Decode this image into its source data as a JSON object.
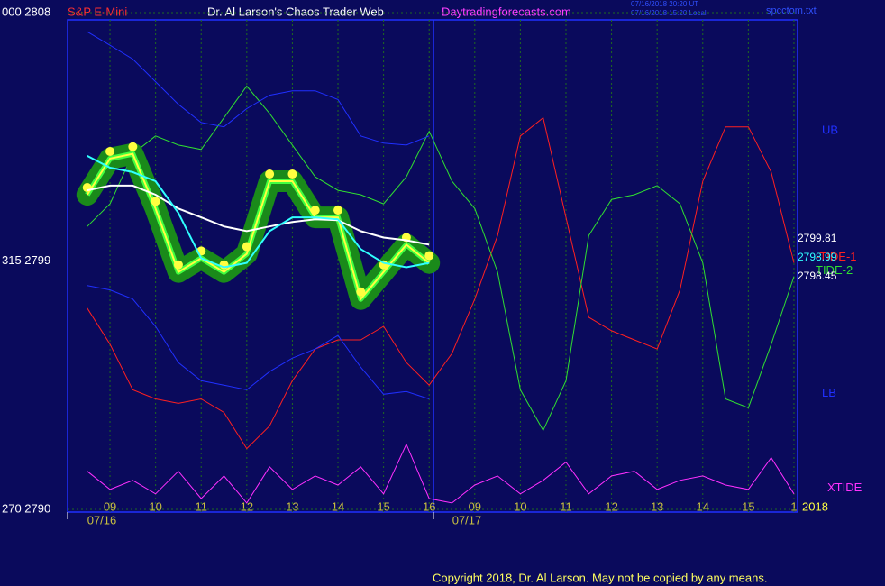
{
  "header": {
    "symbol": "S&P E-Mini",
    "site_title": "Dr. Al Larson's Chaos Trader Web",
    "url": "Daytradingforecasts.com",
    "time_ut": "07/16/2018 20:20 UT",
    "time_local": "07/16/2018 15:20 Local",
    "file": "spcctom.txt"
  },
  "copyright": "Copyright 2018, Dr. Al Larson. May not be copied by any means.",
  "chart_data": {
    "type": "line",
    "x": [
      8.5,
      9,
      9.5,
      10,
      10.5,
      11,
      11.5,
      12,
      12.5,
      13,
      13.5,
      14,
      14.5,
      15,
      15.5,
      16,
      16.5,
      17,
      17.5,
      18,
      18.5,
      19,
      19.5,
      20,
      20.5,
      21,
      21.5,
      22,
      22.5,
      23,
      23.5,
      24
    ],
    "xlim": [
      8.07,
      24.08
    ],
    "xticks": [
      {
        "value": 9,
        "label": "09"
      },
      10,
      11,
      12,
      13,
      14,
      15,
      16,
      {
        "value": 17,
        "label": "09"
      },
      {
        "value": 18,
        "label": "10"
      },
      {
        "value": 19,
        "label": "11"
      },
      {
        "value": 20,
        "label": "12"
      },
      {
        "value": 21,
        "label": "13"
      },
      {
        "value": 22,
        "label": "14"
      },
      {
        "value": 23,
        "label": "15"
      },
      {
        "value": 24,
        "label": "1"
      }
    ],
    "ylim": [
      2789.9,
      2807.74
    ],
    "yticks": [
      {
        "value": 2808,
        "label": "000  2808"
      },
      {
        "value": 2799,
        "label": "315  2799"
      },
      {
        "value": 2790,
        "label": "270  2790"
      }
    ],
    "grid": true,
    "date_labels": [
      "07/16",
      "07/17"
    ],
    "year_label": "2018",
    "series": [
      {
        "name": "-TIDE-1",
        "color": "#ff2020",
        "values": [
          2797.29,
          2795.98,
          2794.33,
          2794.0,
          2793.84,
          2794.0,
          2793.51,
          2792.2,
          2793.02,
          2794.66,
          2795.81,
          2796.14,
          2796.14,
          2796.63,
          2795.32,
          2794.5,
          2795.65,
          2797.62,
          2799.92,
          2803.53,
          2804.19,
          2800.58,
          2796.96,
          2796.47,
          2796.14,
          2795.81,
          2797.95,
          2801.89,
          2803.86,
          2803.86,
          2802.22,
          2798.93
        ]
      },
      {
        "name": "TIDE-2",
        "color": "#30e030",
        "values": [
          2800.25,
          2801.07,
          2802.88,
          2803.53,
          2803.2,
          2803.04,
          2804.19,
          2805.34,
          2804.35,
          2803.2,
          2802.05,
          2801.56,
          2801.4,
          2801.07,
          2802.05,
          2803.7,
          2801.89,
          2800.9,
          2798.6,
          2794.33,
          2792.86,
          2794.66,
          2799.92,
          2801.23,
          2801.4,
          2801.73,
          2801.07,
          2798.93,
          2794.0,
          2793.68,
          2795.98,
          2798.44
        ]
      },
      {
        "name": "XTIDE",
        "color": "#ff30ff",
        "values": [
          2791.38,
          2790.72,
          2791.05,
          2790.56,
          2791.38,
          2790.39,
          2791.21,
          2790.23,
          2791.54,
          2790.72,
          2791.21,
          2790.88,
          2791.54,
          2790.56,
          2792.36,
          2790.39,
          2790.23,
          2790.88,
          2791.21,
          2790.56,
          2791.05,
          2791.71,
          2790.56,
          2791.21,
          2791.38,
          2790.72,
          2791.05,
          2791.21,
          2790.88,
          2790.72,
          2791.87,
          2790.56
        ]
      },
      {
        "name": "UB",
        "color": "#2030ff",
        "values": [
          2807.31,
          2806.82,
          2806.32,
          2805.5,
          2804.68,
          2804.02,
          2803.86,
          2804.52,
          2805.01,
          2805.17,
          2805.17,
          2804.85,
          2803.53,
          2803.27,
          2803.2,
          2803.53,
          null,
          null,
          null,
          null,
          null,
          null,
          null,
          null,
          null,
          null,
          null,
          null,
          null,
          null,
          null,
          null
        ]
      },
      {
        "name": "LB",
        "color": "#2030ff",
        "values": [
          2798.11,
          2797.95,
          2797.62,
          2796.63,
          2795.32,
          2794.66,
          2794.5,
          2794.33,
          2794.99,
          2795.48,
          2795.81,
          2796.3,
          2795.15,
          2794.17,
          2794.27,
          2794.0,
          null,
          null,
          null,
          null,
          null,
          null,
          null,
          null,
          null,
          null,
          null,
          null,
          null,
          null,
          null,
          null
        ]
      },
      {
        "color": "#ffff40",
        "values": [
          2801.4,
          2802.71,
          2802.88,
          2800.9,
          2798.6,
          2799.1,
          2798.6,
          2799.26,
          2801.89,
          2801.89,
          2800.58,
          2800.58,
          2797.62,
          2798.6,
          2799.59,
          2798.93,
          null,
          null,
          null,
          null,
          null,
          null,
          null,
          null,
          null,
          null,
          null,
          null,
          null,
          null,
          null,
          null
        ]
      },
      {
        "color": "#ffffff",
        "values": [
          2801.56,
          2801.73,
          2801.73,
          2801.4,
          2800.9,
          2800.58,
          2800.25,
          2800.08,
          2800.25,
          2800.41,
          2800.51,
          2800.48,
          2800.08,
          2799.85,
          2799.75,
          2799.59,
          null,
          null,
          null,
          null,
          null,
          null,
          null,
          null,
          null,
          null,
          null,
          null,
          null,
          null,
          null,
          null
        ]
      },
      {
        "color": "#30ffff",
        "values": [
          2802.81,
          2802.38,
          2802.22,
          2801.89,
          2800.74,
          2799.1,
          2798.77,
          2798.93,
          2800.08,
          2800.58,
          2800.58,
          2800.51,
          2799.43,
          2798.93,
          2798.77,
          2798.93,
          null,
          null,
          null,
          null,
          null,
          null,
          null,
          null,
          null,
          null,
          null,
          null,
          null,
          null,
          null,
          null
        ]
      }
    ],
    "annotations": [
      {
        "text": "2799.81",
        "color": "#ffffff"
      },
      {
        "text": "2798.99",
        "color": "#30ffff"
      },
      {
        "text": "2798.45",
        "color": "#ffffff"
      }
    ]
  }
}
